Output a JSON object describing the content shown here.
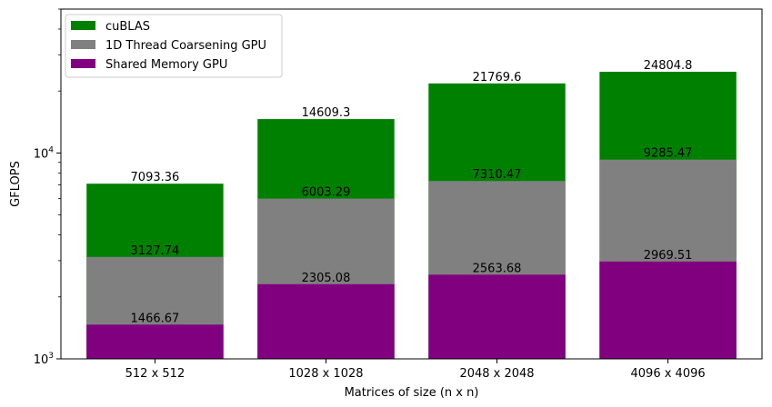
{
  "chart_data": {
    "type": "bar",
    "stacking": "overlaid",
    "yscale": "log",
    "ylim": [
      1000,
      50000
    ],
    "xlabel": "Matrices of size (n x n)",
    "ylabel": "GFLOPS",
    "categories": [
      "512 x 512",
      "1028 x 1028",
      "2048 x 2048",
      "4096 x 4096"
    ],
    "series": [
      {
        "name": "cuBLAS",
        "color": "#008000",
        "values": [
          7093.36,
          14609.3,
          21769.6,
          24804.8
        ],
        "labels": [
          "7093.36",
          "14609.3",
          "21769.6",
          "24804.8"
        ]
      },
      {
        "name": "1D Thread Coarsening GPU",
        "color": "#808080",
        "values": [
          3127.74,
          6003.29,
          7310.47,
          9285.47
        ],
        "labels": [
          "3127.74",
          "6003.29",
          "7310.47",
          "9285.47"
        ]
      },
      {
        "name": "Shared Memory GPU",
        "color": "#800080",
        "values": [
          1466.67,
          2305.08,
          2563.68,
          2969.51
        ],
        "labels": [
          "1466.67",
          "2305.08",
          "2563.68",
          "2969.51"
        ]
      }
    ],
    "legend": "top-left",
    "grid": false
  }
}
